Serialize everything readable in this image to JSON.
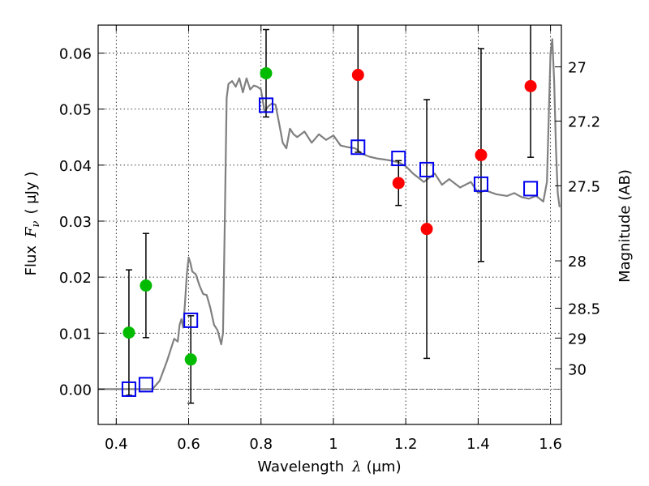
{
  "chart_data": {
    "type": "scatter",
    "xlabel": "Wavelength",
    "xlabel_symbol": "λ",
    "xlabel_unit": "(μm)",
    "ylabel": "Flux",
    "ylabel_symbol": "F",
    "ylabel_subscript": "ν",
    "ylabel_unit": "( μJy )",
    "y2label": "Magnitude (AB)",
    "xlim": [
      0.35,
      1.63
    ],
    "ylim": [
      -0.0063,
      0.065
    ],
    "grid": true,
    "x_ticks": [
      {
        "v": 0.4,
        "label": "0.4"
      },
      {
        "v": 0.6,
        "label": "0.6"
      },
      {
        "v": 0.8,
        "label": "0.8"
      },
      {
        "v": 1.0,
        "label": "1"
      },
      {
        "v": 1.2,
        "label": "1.2"
      },
      {
        "v": 1.4,
        "label": "1.4"
      },
      {
        "v": 1.6,
        "label": "1.6"
      }
    ],
    "y_ticks": [
      {
        "v": 0.0,
        "label": "0.00"
      },
      {
        "v": 0.01,
        "label": "0.01"
      },
      {
        "v": 0.02,
        "label": "0.02"
      },
      {
        "v": 0.03,
        "label": "0.03"
      },
      {
        "v": 0.04,
        "label": "0.04"
      },
      {
        "v": 0.05,
        "label": "0.05"
      },
      {
        "v": 0.06,
        "label": "0.06"
      }
    ],
    "mag_ticks": [
      {
        "mag": 27,
        "label": "27"
      },
      {
        "mag": 27.2,
        "label": "27.2"
      },
      {
        "mag": 27.5,
        "label": "27.5"
      },
      {
        "mag": 28,
        "label": "28"
      },
      {
        "mag": 28.5,
        "label": "28.5"
      },
      {
        "mag": 29,
        "label": "29"
      },
      {
        "mag": 30,
        "label": "30"
      }
    ],
    "template_spectrum": {
      "name": "model SED",
      "color": "#808080",
      "x": [
        0.35,
        0.45,
        0.5,
        0.52,
        0.54,
        0.56,
        0.57,
        0.575,
        0.58,
        0.585,
        0.59,
        0.595,
        0.6,
        0.605,
        0.61,
        0.62,
        0.63,
        0.64,
        0.65,
        0.66,
        0.67,
        0.68,
        0.69,
        0.695,
        0.7,
        0.705,
        0.71,
        0.72,
        0.73,
        0.74,
        0.75,
        0.76,
        0.77,
        0.78,
        0.79,
        0.8,
        0.81,
        0.82,
        0.83,
        0.84,
        0.85,
        0.86,
        0.87,
        0.88,
        0.89,
        0.9,
        0.92,
        0.94,
        0.96,
        0.98,
        1.0,
        1.02,
        1.04,
        1.06,
        1.08,
        1.1,
        1.12,
        1.14,
        1.16,
        1.18,
        1.2,
        1.22,
        1.25,
        1.28,
        1.3,
        1.32,
        1.35,
        1.38,
        1.4,
        1.42,
        1.45,
        1.48,
        1.5,
        1.52,
        1.54,
        1.56,
        1.58,
        1.59,
        1.6,
        1.605,
        1.61,
        1.615,
        1.62,
        1.625
      ],
      "y": [
        0.0,
        0.0,
        0.0,
        0.0015,
        0.005,
        0.009,
        0.0085,
        0.0115,
        0.0125,
        0.011,
        0.0155,
        0.0205,
        0.0235,
        0.0225,
        0.021,
        0.0205,
        0.0185,
        0.017,
        0.0168,
        0.0145,
        0.0115,
        0.0105,
        0.008,
        0.01,
        0.03,
        0.052,
        0.0545,
        0.055,
        0.054,
        0.0555,
        0.053,
        0.0555,
        0.0535,
        0.0542,
        0.054,
        0.0535,
        0.0495,
        0.0505,
        0.051,
        0.0508,
        0.0475,
        0.044,
        0.043,
        0.0465,
        0.0455,
        0.045,
        0.046,
        0.044,
        0.0455,
        0.0445,
        0.0453,
        0.0435,
        0.0432,
        0.043,
        0.042,
        0.0415,
        0.0412,
        0.041,
        0.0408,
        0.0405,
        0.0398,
        0.0385,
        0.037,
        0.0385,
        0.0365,
        0.0375,
        0.036,
        0.037,
        0.035,
        0.0355,
        0.0348,
        0.0345,
        0.035,
        0.0343,
        0.034,
        0.0345,
        0.0335,
        0.037,
        0.06,
        0.0625,
        0.055,
        0.043,
        0.035,
        0.0325
      ]
    },
    "series": [
      {
        "name": "green points",
        "color": "#00bb00",
        "marker": "circle",
        "points": [
          {
            "x": 0.435,
            "y": 0.0101,
            "err": 0.0112
          },
          {
            "x": 0.482,
            "y": 0.0185,
            "err": 0.0093
          },
          {
            "x": 0.606,
            "y": 0.0053,
            "err": 0.0078
          },
          {
            "x": 0.814,
            "y": 0.0564,
            "err": 0.0078
          }
        ]
      },
      {
        "name": "red points",
        "color": "#ff0000",
        "marker": "circle",
        "points": [
          {
            "x": 1.068,
            "y": 0.0561,
            "err": 0.0138
          },
          {
            "x": 1.18,
            "y": 0.0368,
            "err": 0.004
          },
          {
            "x": 1.258,
            "y": 0.0286,
            "err": 0.0231
          },
          {
            "x": 1.408,
            "y": 0.0418,
            "err": 0.019
          },
          {
            "x": 1.545,
            "y": 0.0541,
            "err": 0.0127
          }
        ]
      },
      {
        "name": "model bandpass fluxes",
        "color": "#0000ee",
        "marker": "square",
        "points": [
          {
            "x": 0.435,
            "y": 0.0
          },
          {
            "x": 0.482,
            "y": 0.0008
          },
          {
            "x": 0.606,
            "y": 0.0123
          },
          {
            "x": 0.814,
            "y": 0.0507
          },
          {
            "x": 1.068,
            "y": 0.0432
          },
          {
            "x": 1.18,
            "y": 0.0412
          },
          {
            "x": 1.258,
            "y": 0.0392
          },
          {
            "x": 1.408,
            "y": 0.0366
          },
          {
            "x": 1.545,
            "y": 0.0358
          }
        ]
      }
    ]
  }
}
